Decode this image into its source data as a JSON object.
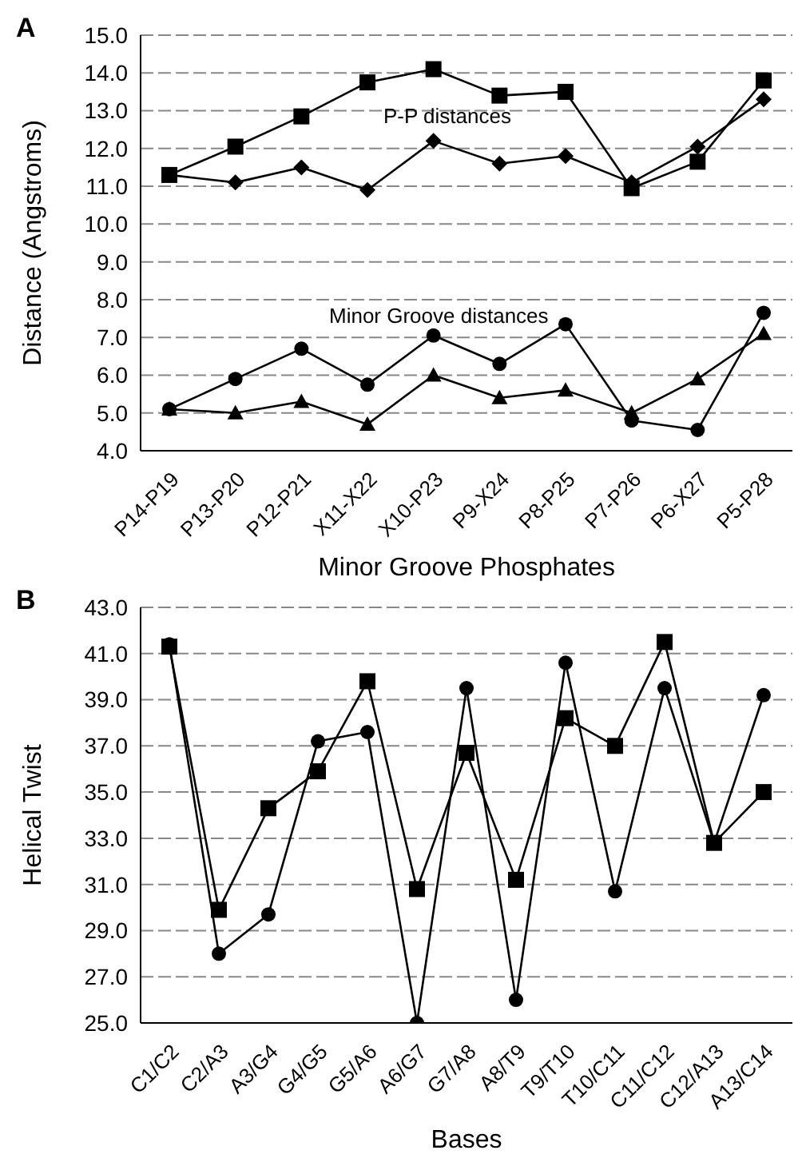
{
  "chart_data": [
    {
      "type": "line",
      "title": "A",
      "xlabel": "Minor Groove Phosphates",
      "ylabel": "Distance (Angstroms)",
      "categories": [
        "P14-P19",
        "P13-P20",
        "P12-P21",
        "X11-X22",
        "X10-P23",
        "P9-X24",
        "P8-P25",
        "P7-P26",
        "P6-X27",
        "P5-P28"
      ],
      "series": [
        {
          "color": "#000000",
          "marker": "square",
          "values": [
            11.3,
            12.05,
            12.85,
            13.75,
            14.1,
            13.4,
            13.5,
            10.95,
            11.65,
            13.8
          ]
        },
        {
          "color": "#000000",
          "marker": "diamond",
          "values": [
            11.3,
            11.1,
            11.5,
            10.9,
            12.2,
            11.6,
            11.8,
            11.1,
            12.05,
            13.3
          ]
        },
        {
          "color": "#000000",
          "marker": "circle",
          "values": [
            5.1,
            5.9,
            6.7,
            5.75,
            7.05,
            6.3,
            7.35,
            4.8,
            4.55,
            7.65
          ]
        },
        {
          "color": "#000000",
          "marker": "triangle",
          "values": [
            5.1,
            5.0,
            5.3,
            4.7,
            6.0,
            5.4,
            5.6,
            5.0,
            5.9,
            7.1
          ]
        }
      ],
      "ylim": [
        4,
        15
      ],
      "yticks": [
        {
          "value": 4,
          "label": "4.0"
        },
        {
          "value": 5,
          "label": "5.0"
        },
        {
          "value": 6,
          "label": "6.0"
        },
        {
          "value": 7,
          "label": "7.0"
        },
        {
          "value": 8,
          "label": "8.0"
        },
        {
          "value": 9,
          "label": "9.0"
        },
        {
          "value": 10,
          "label": "10.0"
        },
        {
          "value": 11,
          "label": "11.0"
        },
        {
          "value": 12,
          "label": "12.0"
        },
        {
          "value": 13,
          "label": "13.0"
        },
        {
          "value": 14,
          "label": "14.0"
        },
        {
          "value": 15,
          "label": "15.0"
        }
      ],
      "grid": "y",
      "annotations": [
        "P-P distances",
        "Minor Groove distances"
      ]
    },
    {
      "type": "line",
      "title": "B",
      "xlabel": "Bases",
      "ylabel": "Helical Twist",
      "categories": [
        "C1/C2",
        "C2/A3",
        "A3/G4",
        "G4/G5",
        "G5/A6",
        "A6/G7",
        "G7/A8",
        "A8/T9",
        "T9/T10",
        "T10/C11",
        "C11/C12",
        "C12/A13",
        "A13/C14"
      ],
      "series": [
        {
          "color": "#000000",
          "marker": "circle",
          "values": [
            41.4,
            28.0,
            29.7,
            37.2,
            37.6,
            25.0,
            39.5,
            26.0,
            40.6,
            30.7,
            39.5,
            32.8,
            39.2
          ]
        },
        {
          "color": "#000000",
          "marker": "square",
          "values": [
            41.3,
            29.9,
            34.3,
            35.9,
            39.8,
            30.8,
            36.7,
            31.2,
            38.2,
            37.0,
            41.5,
            32.8,
            35.0
          ]
        }
      ],
      "ylim": [
        25,
        43
      ],
      "yticks": [
        {
          "value": 25,
          "label": "25.0"
        },
        {
          "value": 27,
          "label": "27.0"
        },
        {
          "value": 29,
          "label": "29.0"
        },
        {
          "value": 31,
          "label": "31.0"
        },
        {
          "value": 33,
          "label": "33.0"
        },
        {
          "value": 35,
          "label": "35.0"
        },
        {
          "value": 37,
          "label": "37.0"
        },
        {
          "value": 39,
          "label": "39.0"
        },
        {
          "value": 41,
          "label": "41.0"
        },
        {
          "value": 43,
          "label": "43.0"
        }
      ],
      "grid": "y"
    }
  ]
}
